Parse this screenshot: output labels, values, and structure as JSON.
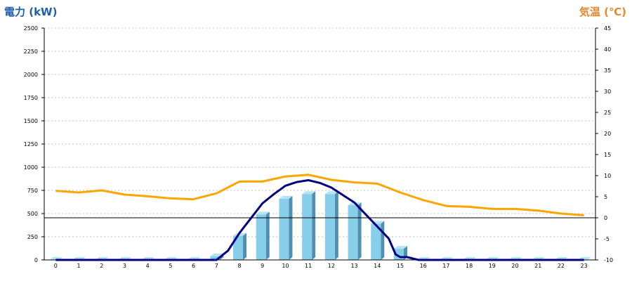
{
  "chart_data": {
    "type": "bar",
    "ylabel_left": "電力 (kW)",
    "ylabel_right": "気温 (℃)",
    "categories": [
      "0",
      "1",
      "2",
      "3",
      "4",
      "5",
      "6",
      "7",
      "8",
      "9",
      "10",
      "11",
      "12",
      "13",
      "14",
      "15",
      "16",
      "17",
      "18",
      "19",
      "20",
      "21",
      "22",
      "23"
    ],
    "left_axis": {
      "min": 0,
      "max": 2500,
      "ticks": [
        0,
        250,
        500,
        750,
        1000,
        1250,
        1500,
        1750,
        2000,
        2250,
        2500
      ]
    },
    "right_axis": {
      "min": -10,
      "max": 45,
      "ticks": [
        -10,
        -5,
        0,
        5,
        10,
        15,
        20,
        25,
        30,
        35,
        40,
        45
      ]
    },
    "grid": true,
    "zero_line_right_axis": 0,
    "series": [
      {
        "type": "bar3d",
        "axis": "left",
        "color": "#87ceeb",
        "values": [
          0,
          0,
          0,
          0,
          0,
          0,
          0,
          40,
          260,
          490,
          660,
          710,
          710,
          590,
          390,
          120,
          0,
          0,
          0,
          0,
          0,
          0,
          0,
          0
        ]
      },
      {
        "type": "line",
        "axis": "left",
        "color": "#000080",
        "x": [
          0,
          1,
          2,
          3,
          4,
          5,
          6,
          7,
          7.5,
          8,
          8.5,
          9,
          9.5,
          10,
          10.5,
          11,
          11.5,
          12,
          12.5,
          13,
          13.5,
          14,
          14.5,
          14.8,
          15,
          15.3,
          15.8,
          16,
          17,
          18,
          19,
          20,
          21,
          22,
          23
        ],
        "values": [
          0,
          0,
          0,
          0,
          0,
          0,
          0,
          0,
          100,
          290,
          450,
          610,
          710,
          800,
          840,
          860,
          830,
          780,
          700,
          620,
          490,
          360,
          230,
          60,
          30,
          30,
          0,
          0,
          0,
          0,
          0,
          0,
          0,
          0,
          0
        ]
      },
      {
        "type": "line",
        "axis": "right",
        "color": "#ffa500",
        "values": [
          6.4,
          6.0,
          6.5,
          5.5,
          5.1,
          4.6,
          4.4,
          5.8,
          8.6,
          8.6,
          9.8,
          10.2,
          9.0,
          8.4,
          8.1,
          6.0,
          4.2,
          2.8,
          2.6,
          2.1,
          2.1,
          1.7,
          1.0,
          0.6
        ]
      }
    ]
  }
}
